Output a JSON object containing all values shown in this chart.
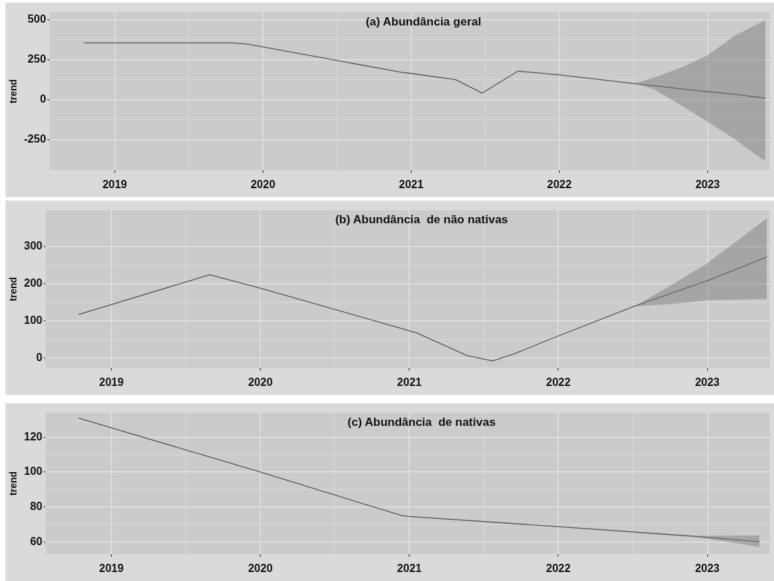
{
  "chart_data": [
    {
      "type": "line",
      "title": "(a) Abundância geral",
      "ylabel": "trend",
      "xlim": [
        2018.56,
        2023.42
      ],
      "xticks": [
        2019,
        2020,
        2021,
        2022,
        2023
      ],
      "ylim": [
        -440,
        545
      ],
      "yticks": [
        -250,
        0,
        250,
        500
      ],
      "grid": true,
      "legend": false,
      "marker": "none",
      "line_style": "solid",
      "x": [
        2018.79,
        2019.79,
        2019.9,
        2020.94,
        2021.0,
        2021.3,
        2021.48,
        2021.72,
        2022.0,
        2022.51,
        2022.64,
        2022.83,
        2023.0,
        2023.18,
        2023.39
      ],
      "series": [
        {
          "color": "#555555",
          "values": [
            355,
            355,
            346,
            170,
            164,
            125,
            41,
            178,
            155,
            100,
            87,
            67,
            50,
            34,
            9
          ],
          "lower": [
            null,
            null,
            null,
            null,
            null,
            null,
            null,
            null,
            null,
            100,
            64,
            -41,
            -138,
            -245,
            -386
          ],
          "upper": [
            null,
            null,
            null,
            null,
            null,
            null,
            null,
            null,
            null,
            100,
            138,
            204,
            277,
            398,
            498
          ]
        }
      ]
    },
    {
      "type": "line",
      "title": "(b) Abundância  de não nativas",
      "ylabel": "trend",
      "xlim": [
        2018.56,
        2023.42
      ],
      "xticks": [
        2019,
        2020,
        2021,
        2022,
        2023
      ],
      "ylim": [
        -27,
        398
      ],
      "yticks": [
        0,
        100,
        200,
        300
      ],
      "grid": true,
      "legend": false,
      "marker": "none",
      "line_style": "solid",
      "x": [
        2018.78,
        2019.66,
        2020.0,
        2021.0,
        2021.05,
        2021.39,
        2021.56,
        2021.71,
        2022.0,
        2022.51,
        2022.75,
        2023.0,
        2023.4
      ],
      "series": [
        {
          "color": "#555555",
          "values": [
            117,
            224,
            188,
            73,
            67,
            6,
            -8,
            12,
            59,
            139,
            173,
            208,
            272
          ],
          "lower": [
            null,
            null,
            null,
            null,
            null,
            null,
            null,
            null,
            null,
            139,
            145,
            155,
            159
          ],
          "upper": [
            null,
            null,
            null,
            null,
            null,
            null,
            null,
            null,
            null,
            139,
            194,
            255,
            376
          ]
        }
      ]
    },
    {
      "type": "line",
      "title": "(c) Abundância  de nativas",
      "ylabel": "trend",
      "xlim": [
        2018.56,
        2023.42
      ],
      "xticks": [
        2019,
        2020,
        2021,
        2022,
        2023
      ],
      "ylim": [
        53,
        134
      ],
      "yticks": [
        60,
        80,
        100,
        120
      ],
      "grid": true,
      "legend": false,
      "marker": "none",
      "line_style": "solid",
      "x": [
        2018.78,
        2020.0,
        2020.95,
        2021.0,
        2022.0,
        2022.77,
        2023.0,
        2023.35
      ],
      "series": [
        {
          "color": "#555555",
          "values": [
            131,
            100,
            75,
            74.5,
            68.7,
            64,
            62.6,
            60
          ],
          "lower": [
            null,
            null,
            null,
            null,
            null,
            64,
            61.8,
            57
          ],
          "upper": [
            null,
            null,
            null,
            null,
            null,
            64,
            63.4,
            63.6
          ]
        }
      ]
    }
  ]
}
